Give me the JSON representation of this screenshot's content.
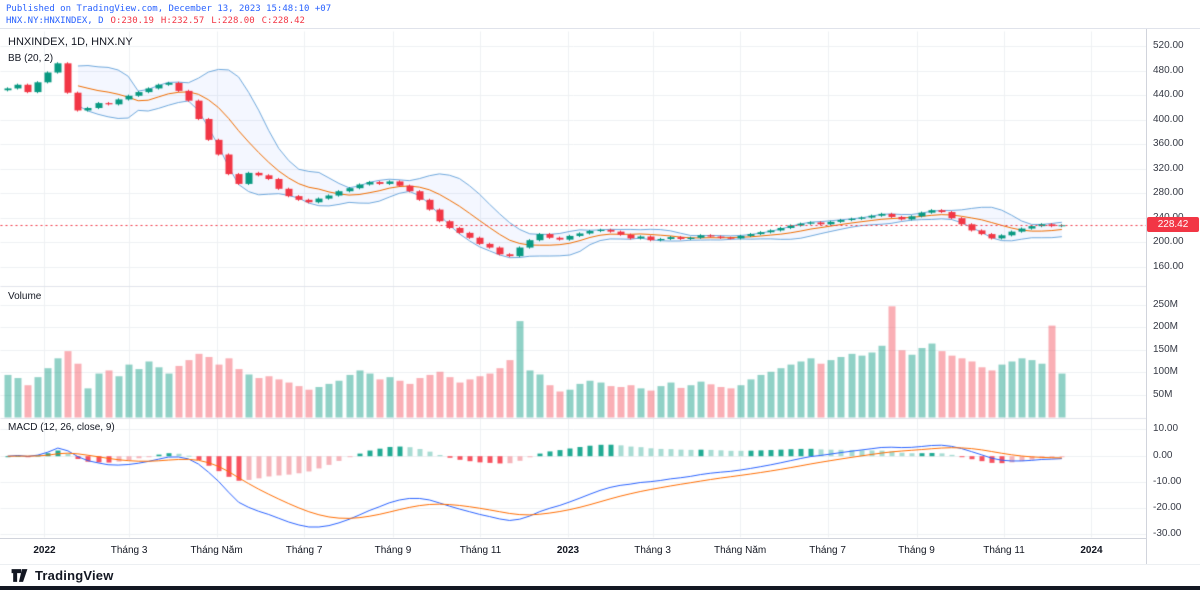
{
  "header": {
    "published": "Published on TradingView.com, December 13, 2023 15:48:10 +07",
    "symbol_line": "HNX.NY:HNXINDEX, D",
    "ohlc_tokens": [
      "O:230.19",
      "H:232.57",
      "L:228.00",
      "C:228.42"
    ]
  },
  "legend": {
    "title": "HNXINDEX, 1D, HNX.NY",
    "bb": "BB (20, 2)",
    "volume": "Volume",
    "macd": "MACD (12, 26, close, 9)"
  },
  "footer": {
    "brand": "TradingView"
  },
  "colors": {
    "up": "#089981",
    "down": "#f23645",
    "vol_up": "rgba(8,153,129,0.45)",
    "vol_down": "rgba(242,54,69,0.40)",
    "band": "#6fa8dc",
    "band_fill": "rgba(41,98,255,0.05)",
    "basis": "#ef6c00",
    "macd_line": "#2962ff",
    "signal_line": "#ff6d00",
    "hist_pos_strong": "#22ab94",
    "hist_pos_weak": "#a8dcd3",
    "hist_neg_strong": "#f7525f",
    "hist_neg_weak": "#f5b5bb",
    "grid": "#eef0f3",
    "separator": "#e0e3eb",
    "last_price": "#f23645",
    "accent_blue": "#2962ff"
  },
  "x_axis": {
    "range": [
      "2021-12-01",
      "2024-02-08"
    ],
    "ticks": [
      {
        "label": "2022",
        "date": "2022-01-01",
        "major": true
      },
      {
        "label": "Tháng 3",
        "date": "2022-03-01",
        "major": false
      },
      {
        "label": "Tháng Năm",
        "date": "2022-05-01",
        "major": false
      },
      {
        "label": "Tháng 7",
        "date": "2022-07-01",
        "major": false
      },
      {
        "label": "Tháng 9",
        "date": "2022-09-01",
        "major": false
      },
      {
        "label": "Tháng 11",
        "date": "2022-11-01",
        "major": false
      },
      {
        "label": "2023",
        "date": "2023-01-01",
        "major": true
      },
      {
        "label": "Tháng 3",
        "date": "2023-03-01",
        "major": false
      },
      {
        "label": "Tháng Năm",
        "date": "2023-05-01",
        "major": false
      },
      {
        "label": "Tháng 7",
        "date": "2023-07-01",
        "major": false
      },
      {
        "label": "Tháng 9",
        "date": "2023-09-01",
        "major": false
      },
      {
        "label": "Tháng 11",
        "date": "2023-11-01",
        "major": false
      },
      {
        "label": "2024",
        "date": "2024-01-01",
        "major": true
      }
    ]
  },
  "chart_data": [
    {
      "type": "candlestick",
      "symbol": "HNXINDEX",
      "interval": "1D",
      "exchange": "HNX.NY",
      "indicator": "BB (20, 2)",
      "x_start": "2021-12-06",
      "x_step_days": 7,
      "close": [
        452,
        458,
        446,
        462,
        478,
        493,
        445,
        416,
        420,
        428,
        426,
        434,
        440,
        446,
        452,
        458,
        461,
        448,
        432,
        402,
        368,
        344,
        312,
        296,
        314,
        310,
        304,
        288,
        276,
        270,
        266,
        272,
        277,
        284,
        289,
        295,
        299,
        296,
        300,
        293,
        284,
        270,
        254,
        235,
        224,
        216,
        208,
        198,
        192,
        181,
        178,
        192,
        204,
        214,
        208,
        205,
        211,
        215,
        219,
        221,
        218,
        213,
        207,
        210,
        204,
        206,
        209,
        206,
        208,
        212,
        210,
        208,
        207,
        211,
        214,
        217,
        220,
        224,
        228,
        231,
        233,
        230,
        234,
        237,
        239,
        241,
        244,
        247,
        242,
        238,
        243,
        249,
        253,
        250,
        240,
        230,
        220,
        214,
        207,
        212,
        218,
        223,
        227,
        230,
        227,
        228.42
      ],
      "ylim": [
        130,
        545
      ],
      "y_ticks": [
        520,
        480,
        440,
        400,
        360,
        320,
        280,
        240,
        200,
        160
      ],
      "last_price": 228.42,
      "last_price_label": "228.42",
      "ohlc": {
        "open": 230.19,
        "high": 232.57,
        "low": 228.0,
        "close": 228.42
      }
    },
    {
      "type": "bar",
      "label": "Volume",
      "units": "millions",
      "values": [
        95,
        88,
        72,
        90,
        110,
        132,
        148,
        120,
        65,
        98,
        105,
        92,
        118,
        108,
        125,
        112,
        98,
        115,
        128,
        142,
        135,
        118,
        132,
        108,
        96,
        88,
        92,
        85,
        78,
        70,
        62,
        68,
        75,
        82,
        95,
        105,
        98,
        85,
        90,
        82,
        75,
        88,
        95,
        102,
        90,
        78,
        85,
        92,
        98,
        110,
        128,
        215,
        105,
        96,
        72,
        58,
        62,
        75,
        82,
        78,
        70,
        68,
        72,
        65,
        60,
        70,
        78,
        66,
        72,
        80,
        74,
        68,
        65,
        72,
        85,
        95,
        102,
        110,
        118,
        125,
        132,
        120,
        128,
        135,
        142,
        138,
        145,
        160,
        248,
        150,
        140,
        155,
        165,
        148,
        138,
        132,
        125,
        112,
        105,
        118,
        125,
        132,
        128,
        120,
        205,
        98
      ],
      "ylim": [
        0,
        290
      ],
      "y_ticks": [
        250,
        200,
        150,
        100,
        50
      ],
      "y_tick_labels": [
        "250M",
        "200M",
        "150M",
        "100M",
        "50M"
      ]
    },
    {
      "type": "line",
      "label": "MACD (12, 26, close, 9)",
      "params": {
        "fast": 12,
        "slow": 26,
        "source": "close",
        "signal": 9
      },
      "ylim": [
        -31,
        14
      ],
      "y_ticks": [
        10,
        0,
        -10,
        -20,
        -30
      ],
      "y_tick_labels": [
        "10.00",
        "0.00",
        "-10.00",
        "-20.00",
        "-30.00"
      ]
    }
  ]
}
